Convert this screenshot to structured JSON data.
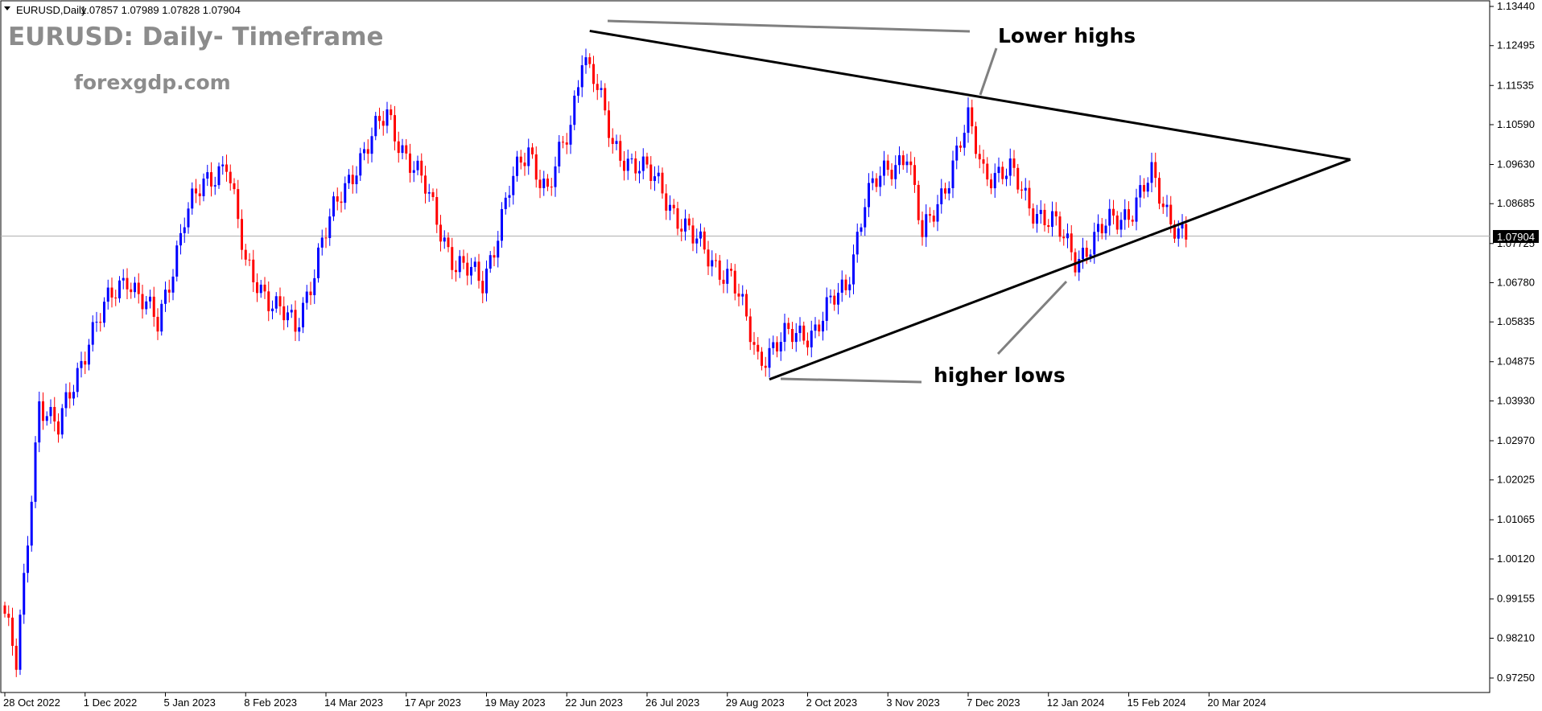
{
  "header": {
    "symbol": "EURUSD,Daily",
    "ohlc": "1.07857 1.07989 1.07828 1.07904"
  },
  "title": "EURUSD: Daily- Timeframe",
  "site": "forexgdp.com",
  "annotations": {
    "lower_highs": "Lower highs",
    "higher_lows": "higher lows"
  },
  "current_price": "1.07904",
  "colors": {
    "bull": "#0000ff",
    "bear": "#ff0000",
    "trendline": "#000000",
    "gray_line": "#808080",
    "price_line": "#b0b0b0"
  },
  "chart_data": {
    "type": "candlestick",
    "ylim": [
      0.9725,
      1.1344
    ],
    "y_ticks": [
      "1.13440",
      "1.12495",
      "1.11535",
      "1.10590",
      "1.09630",
      "1.08685",
      "1.07725",
      "1.06780",
      "1.05835",
      "1.04875",
      "1.03930",
      "1.02970",
      "1.02025",
      "1.01065",
      "1.00120",
      "0.99155",
      "0.98210",
      "0.97250"
    ],
    "x_ticks": [
      "28 Oct 2022",
      "1 Dec 2022",
      "5 Jan 2023",
      "8 Feb 2023",
      "14 Mar 2023",
      "17 Apr 2023",
      "19 May 2023",
      "22 Jun 2023",
      "26 Jul 2023",
      "29 Aug 2023",
      "2 Oct 2023",
      "3 Nov 2023",
      "7 Dec 2023",
      "12 Jan 2024",
      "15 Feb 2024",
      "20 Mar 2024"
    ],
    "anchors": [
      {
        "i": 0,
        "v": 0.988
      },
      {
        "i": 3,
        "v": 0.975
      },
      {
        "i": 5,
        "v": 0.995
      },
      {
        "i": 9,
        "v": 1.04
      },
      {
        "i": 14,
        "v": 1.032
      },
      {
        "i": 22,
        "v": 1.055
      },
      {
        "i": 26,
        "v": 1.061
      },
      {
        "i": 32,
        "v": 1.07
      },
      {
        "i": 40,
        "v": 1.057
      },
      {
        "i": 47,
        "v": 1.084
      },
      {
        "i": 53,
        "v": 1.092
      },
      {
        "i": 58,
        "v": 1.098
      },
      {
        "i": 63,
        "v": 1.071
      },
      {
        "i": 68,
        "v": 1.066
      },
      {
        "i": 76,
        "v": 1.056
      },
      {
        "i": 83,
        "v": 1.078
      },
      {
        "i": 92,
        "v": 1.097
      },
      {
        "i": 100,
        "v": 1.108
      },
      {
        "i": 110,
        "v": 1.09
      },
      {
        "i": 118,
        "v": 1.072
      },
      {
        "i": 125,
        "v": 1.068
      },
      {
        "i": 132,
        "v": 1.09
      },
      {
        "i": 137,
        "v": 1.1
      },
      {
        "i": 142,
        "v": 1.09
      },
      {
        "i": 148,
        "v": 1.105
      },
      {
        "i": 151,
        "v": 1.124
      },
      {
        "i": 154,
        "v": 1.118
      },
      {
        "i": 159,
        "v": 1.1
      },
      {
        "i": 165,
        "v": 1.097
      },
      {
        "i": 172,
        "v": 1.09
      },
      {
        "i": 180,
        "v": 1.078
      },
      {
        "i": 190,
        "v": 1.069
      },
      {
        "i": 197,
        "v": 1.05
      },
      {
        "i": 204,
        "v": 1.054
      },
      {
        "i": 212,
        "v": 1.057
      },
      {
        "i": 220,
        "v": 1.067
      },
      {
        "i": 225,
        "v": 1.088
      },
      {
        "i": 232,
        "v": 1.096
      },
      {
        "i": 236,
        "v": 1.1
      },
      {
        "i": 240,
        "v": 1.078
      },
      {
        "i": 246,
        "v": 1.092
      },
      {
        "i": 252,
        "v": 1.106
      },
      {
        "i": 256,
        "v": 1.095
      },
      {
        "i": 263,
        "v": 1.094
      },
      {
        "i": 268,
        "v": 1.087
      },
      {
        "i": 274,
        "v": 1.082
      },
      {
        "i": 280,
        "v": 1.074
      },
      {
        "i": 285,
        "v": 1.078
      },
      {
        "i": 290,
        "v": 1.083
      },
      {
        "i": 295,
        "v": 1.086
      },
      {
        "i": 300,
        "v": 1.093
      },
      {
        "i": 303,
        "v": 1.087
      },
      {
        "i": 307,
        "v": 1.081
      },
      {
        "i": 309,
        "v": 1.079
      }
    ],
    "trendlines": [
      {
        "name": "upper",
        "from": {
          "i": 153,
          "v": 1.1285
        },
        "to": {
          "i": 352,
          "v": 1.0975
        }
      },
      {
        "name": "lower",
        "from": {
          "i": 200,
          "v": 1.0445
        },
        "to": {
          "i": 352,
          "v": 1.0975
        }
      }
    ]
  }
}
